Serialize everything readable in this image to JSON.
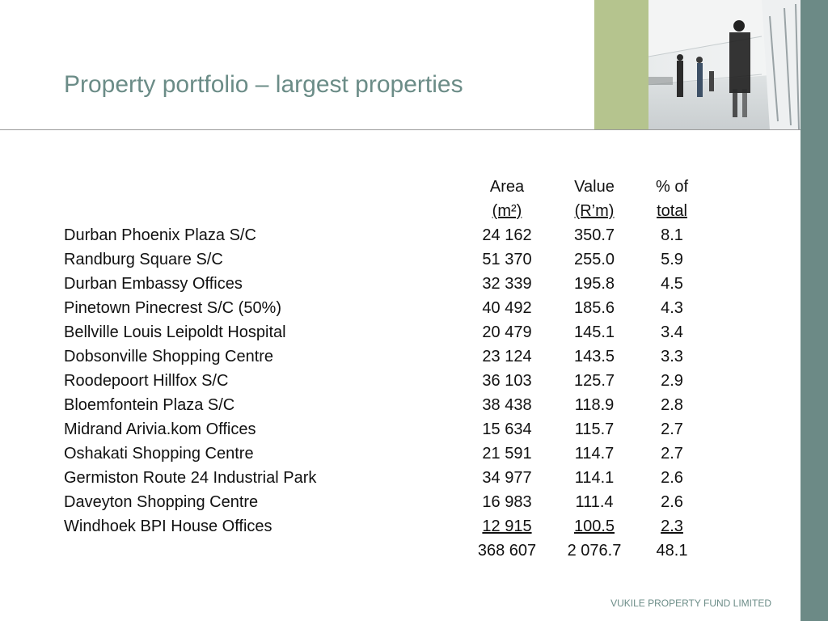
{
  "header": {
    "title": "Property portfolio – largest properties"
  },
  "table": {
    "headers": {
      "area": [
        "Area",
        "(m²)"
      ],
      "value": [
        "Value",
        "(R’m)"
      ],
      "pct": [
        "% of",
        "total"
      ]
    },
    "rows": [
      {
        "name": "Durban Phoenix Plaza S/C",
        "area": "24 162",
        "value": "350.7",
        "pct": "8.1"
      },
      {
        "name": "Randburg Square S/C",
        "area": "51 370",
        "value": "255.0",
        "pct": "5.9"
      },
      {
        "name": "Durban Embassy Offices",
        "area": "32 339",
        "value": "195.8",
        "pct": "4.5"
      },
      {
        "name": "Pinetown Pinecrest S/C (50%)",
        "area": "40 492",
        "value": "185.6",
        "pct": "4.3"
      },
      {
        "name": "Bellville Louis Leipoldt Hospital",
        "area": "20 479",
        "value": "145.1",
        "pct": "3.4"
      },
      {
        "name": "Dobsonville Shopping Centre",
        "area": "23 124",
        "value": "143.5",
        "pct": "3.3"
      },
      {
        "name": "Roodepoort Hillfox S/C",
        "area": "36 103",
        "value": "125.7",
        "pct": "2.9"
      },
      {
        "name": "Bloemfontein Plaza S/C",
        "area": "38 438",
        "value": "118.9",
        "pct": "2.8"
      },
      {
        "name": "Midrand Arivia.kom Offices",
        "area": "15 634",
        "value": "115.7",
        "pct": "2.7"
      },
      {
        "name": "Oshakati Shopping Centre",
        "area": "21 591",
        "value": "114.7",
        "pct": "2.7"
      },
      {
        "name": "Germiston Route 24 Industrial Park",
        "area": "34 977",
        "value": "114.1",
        "pct": "2.6"
      },
      {
        "name": "Daveyton Shopping Centre",
        "area": "16 983",
        "value": "111.4",
        "pct": "2.6"
      },
      {
        "name": "Windhoek BPI House Offices",
        "area": "12 915",
        "value": "100.5",
        "pct": "2.3"
      }
    ],
    "totals": {
      "area": "368 607",
      "value": "2 076.7",
      "pct": "48.1"
    }
  },
  "footer": {
    "text": "VUKILE PROPERTY FUND LIMITED"
  },
  "colors": {
    "title": "#6b8c87",
    "right_bar": "#6c8a86",
    "green_strip": "#b5c48e",
    "divider": "#9a9a9a"
  },
  "images": {
    "header_photo": "corridor-people-walking-photo"
  }
}
